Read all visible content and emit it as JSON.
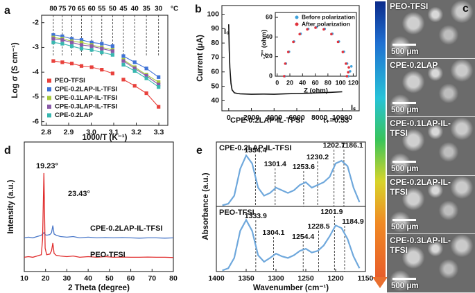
{
  "chart_data": [
    {
      "type": "scatter",
      "panel": "a",
      "xlabel": "1000/T (K⁻¹)",
      "ylabel": "Log σ (S cm⁻¹)",
      "x2unit": "°C",
      "x": [
        2.832,
        2.872,
        2.914,
        2.957,
        3.002,
        3.047,
        3.095,
        null,
        3.143,
        3.193,
        3.245,
        3.299
      ],
      "xlim": [
        2.78,
        3.34
      ],
      "xticks": [
        2.8,
        2.9,
        {
          "value": 3,
          "label": "3.0"
        },
        3.1,
        3.2,
        3.3
      ],
      "x2ticks": [
        {
          "value": 2.832,
          "label": "80"
        },
        {
          "value": 2.872,
          "label": "75"
        },
        {
          "value": 2.914,
          "label": "70"
        },
        {
          "value": 2.957,
          "label": "65"
        },
        {
          "value": 3.002,
          "label": "60"
        },
        {
          "value": 3.047,
          "label": "55"
        },
        {
          "value": 3.095,
          "label": "50"
        },
        {
          "value": 3.143,
          "label": "45"
        },
        {
          "value": 3.193,
          "label": "40"
        },
        {
          "value": 3.245,
          "label": "35"
        },
        {
          "value": 3.299,
          "label": "30"
        }
      ],
      "ylim": [
        -6.15,
        -1.7
      ],
      "yticks": [
        -6,
        -5,
        -4,
        -3,
        -2
      ],
      "marker": "square",
      "lines": true,
      "legend": "lower left",
      "series": [
        {
          "name": "PEO-TFSI",
          "color": "#e8413c",
          "values": [
            -3.55,
            -3.6,
            -3.65,
            -3.75,
            -3.8,
            -3.9,
            -4.05,
            null,
            -4.3,
            -4.55,
            -4.85,
            -5.4
          ]
        },
        {
          "name": "CPE-0.2LAP-IL-TFSI",
          "color": "#3f72d6",
          "values": [
            -2.5,
            -2.55,
            -2.65,
            -2.7,
            -2.8,
            -2.85,
            -2.95,
            null,
            -3.35,
            -3.6,
            -3.85,
            -4.2
          ]
        },
        {
          "name": "CPE-0.1LAP-IL-TFSI",
          "color": "#a6c93c",
          "values": [
            -2.6,
            -2.65,
            -2.75,
            -2.8,
            -2.9,
            -3.0,
            -3.1,
            null,
            -3.5,
            -3.8,
            -4.1,
            -4.4
          ]
        },
        {
          "name": "CPE-0.3LAP-IL-TFSI",
          "color": "#8a5aa8",
          "values": [
            -2.65,
            -2.7,
            -2.8,
            -2.9,
            -2.95,
            -3.05,
            -3.15,
            null,
            -3.55,
            -3.85,
            -4.15,
            -4.5
          ]
        },
        {
          "name": "CPE-0.2LAP",
          "color": "#38b7b0",
          "values": [
            -2.8,
            -2.85,
            -2.95,
            -3.05,
            -3.1,
            -3.2,
            -3.3,
            null,
            -3.7,
            -3.95,
            -4.25,
            -4.6
          ]
        }
      ]
    },
    {
      "type": "line",
      "panel": "b",
      "ylabel": "Current (μA)",
      "x": [
        0,
        50,
        100,
        200,
        300,
        500,
        800,
        1000,
        2000,
        3000,
        4000,
        5000,
        6000,
        7000,
        8000,
        9000,
        10000
      ],
      "xlim": [
        -600,
        11500
      ],
      "xticks": [
        0,
        2000,
        4000,
        6000,
        8000,
        10000
      ],
      "ylim": [
        33,
        106
      ],
      "yticks": [
        40,
        50,
        60,
        70,
        80,
        90,
        100
      ],
      "series": [
        {
          "color": "#111111",
          "values": [
            93,
            75,
            63,
            52,
            47.5,
            45.5,
            45,
            44.8,
            44.5,
            44.6,
            44.5,
            44.8,
            45,
            45.2,
            45.5,
            45.8,
            46.2
          ]
        }
      ],
      "annotations": [
        "I₀",
        "Iₛ",
        "CPE-0.2LAP-IL-TFSI",
        "t₊=0.53"
      ],
      "inset": {
        "type": "scatter",
        "xlabel": "Z (ohm)",
        "ylabel": "-Z'' (ohm)",
        "xlim": [
          -3,
          125
        ],
        "xticks": [
          0,
          20,
          40,
          60,
          80,
          100,
          120
        ],
        "ylim": [
          0,
          65
        ],
        "yticks": [
          0,
          20,
          40,
          60
        ],
        "marker": "circle",
        "legend": "upper right",
        "series": [
          {
            "name": "Before polarization",
            "color": "#3fa2dc",
            "x": [
              12,
              13.7,
              18.7,
              26.6,
              37,
              49,
              62,
              75,
              87,
              97.4,
              105.3,
              110.3,
              112,
              115,
              117
            ],
            "values": [
              0,
              12.9,
              25,
              35.4,
              43.3,
              48.3,
              50,
              48.3,
              43.3,
              35.4,
              25,
              12.9,
              0,
              5,
              10
            ]
          },
          {
            "name": "After polarization",
            "color": "#e0303a",
            "x": [
              11,
              12.7,
              17.5,
              25.5,
              35.5,
              47.5,
              60.5,
              73.5,
              85.5,
              96,
              103.5,
              108.5,
              110,
              112,
              113
            ],
            "values": [
              0,
              12.8,
              24.7,
              35,
              42.9,
              47.8,
              49.5,
              47.8,
              42.9,
              35,
              24.7,
              12.8,
              0,
              4,
              9
            ]
          }
        ]
      }
    },
    {
      "type": "line",
      "panel": "d",
      "xlabel": "2 Theta (degree)",
      "ylabel": "Intensity (a.u.)",
      "x": [
        10,
        12,
        14,
        16,
        17,
        18,
        18.6,
        19.23,
        19.8,
        20.5,
        22,
        22.8,
        23.43,
        24,
        25,
        27,
        30,
        33,
        36,
        40,
        44,
        48,
        52,
        56,
        60,
        64,
        68,
        72,
        76,
        80
      ],
      "xlim": [
        10,
        80
      ],
      "xticks": [
        10,
        20,
        30,
        40,
        50,
        60,
        70,
        80
      ],
      "ylim": [
        0,
        10
      ],
      "legend": "inline",
      "series": [
        {
          "name": "CPE-0.2LAP-IL-TFSI",
          "color": "#4a78c9",
          "values": [
            2.6,
            2.65,
            2.6,
            2.7,
            2.75,
            2.8,
            2.9,
            3.0,
            2.85,
            2.8,
            2.85,
            3.0,
            3.55,
            2.9,
            2.8,
            2.7,
            2.65,
            2.7,
            2.6,
            2.65,
            2.6,
            2.62,
            2.6,
            2.62,
            2.6,
            2.58,
            2.6,
            2.6,
            2.58,
            2.6
          ]
        },
        {
          "name": "PEO-TFSI",
          "color": "#e02a2a",
          "values": [
            1.1,
            1.15,
            1.1,
            1.2,
            1.25,
            1.3,
            2.5,
            7.6,
            1.8,
            1.3,
            1.35,
            1.6,
            2.2,
            1.4,
            1.25,
            1.2,
            1.15,
            1.2,
            1.1,
            1.15,
            1.1,
            1.15,
            1.1,
            1.12,
            1.1,
            1.1,
            1.12,
            1.1,
            1.1,
            1.08
          ]
        }
      ],
      "annotations": [
        "19.23°",
        "23.43°"
      ]
    },
    {
      "type": "line",
      "panel": "e",
      "ylabel": "Absorbance (a.u.)",
      "x": [
        1390,
        1380,
        1370,
        1360,
        1350,
        1340,
        1330,
        1320,
        1310,
        1300,
        1290,
        1280,
        1270,
        1260,
        1250,
        1240,
        1230,
        1220,
        1210,
        1200,
        1190,
        1180,
        1170,
        1160
      ],
      "xlim": [
        1400,
        1150
      ],
      "ylim": [
        0,
        1.2
      ],
      "legend": "inline",
      "series": [
        {
          "name": "CPE-0.2LAP-IL-TFSI",
          "color": "#6fa8dc",
          "values": [
            0.02,
            0.05,
            0.2,
            0.7,
            0.95,
            0.8,
            0.35,
            0.2,
            0.25,
            0.35,
            0.3,
            0.25,
            0.3,
            0.4,
            0.45,
            0.35,
            0.4,
            0.45,
            0.55,
            0.8,
            0.85,
            0.75,
            0.35,
            0.08
          ]
        }
      ],
      "peaks": [
        1334.4,
        1301.4,
        1253.6,
        1230.2,
        1202.7,
        1186.1
      ]
    },
    {
      "type": "line",
      "xlabel": "Wavenumber (cm⁻¹)",
      "x": [
        1390,
        1380,
        1370,
        1360,
        1350,
        1340,
        1330,
        1320,
        1310,
        1300,
        1290,
        1280,
        1270,
        1260,
        1250,
        1240,
        1230,
        1220,
        1210,
        1200,
        1190,
        1180,
        1170,
        1160
      ],
      "xlim": [
        1400,
        1150
      ],
      "xticks": [
        1400,
        1350,
        1300,
        1250,
        1200,
        1150
      ],
      "ylim": [
        0,
        1.2
      ],
      "legend": "inline",
      "series": [
        {
          "name": "PEO-TFSI",
          "color": "#6fa8dc",
          "values": [
            0.02,
            0.06,
            0.25,
            0.75,
            0.95,
            0.75,
            0.3,
            0.18,
            0.25,
            0.33,
            0.28,
            0.25,
            0.3,
            0.38,
            0.42,
            0.35,
            0.38,
            0.48,
            0.65,
            0.85,
            0.8,
            0.6,
            0.28,
            0.06
          ]
        }
      ],
      "peaks": [
        1333.9,
        1304.1,
        1254.4,
        1228.5,
        1201.9,
        1184.9
      ]
    }
  ],
  "panel_c": {
    "label": "c",
    "images": [
      {
        "label": "PEO-TFSI",
        "scale": "500 μm"
      },
      {
        "label": "CPE-0.2LAP",
        "scale": "500 μm"
      },
      {
        "label": "CPE-0.1LAP-IL-TFSI",
        "scale": "500 μm"
      },
      {
        "label": "CPE-0.2LAP-IL-TFSI",
        "scale": "500 μm"
      },
      {
        "label": "CPE-0.3LAP-IL-TFSI",
        "scale": "500 μm"
      }
    ]
  }
}
